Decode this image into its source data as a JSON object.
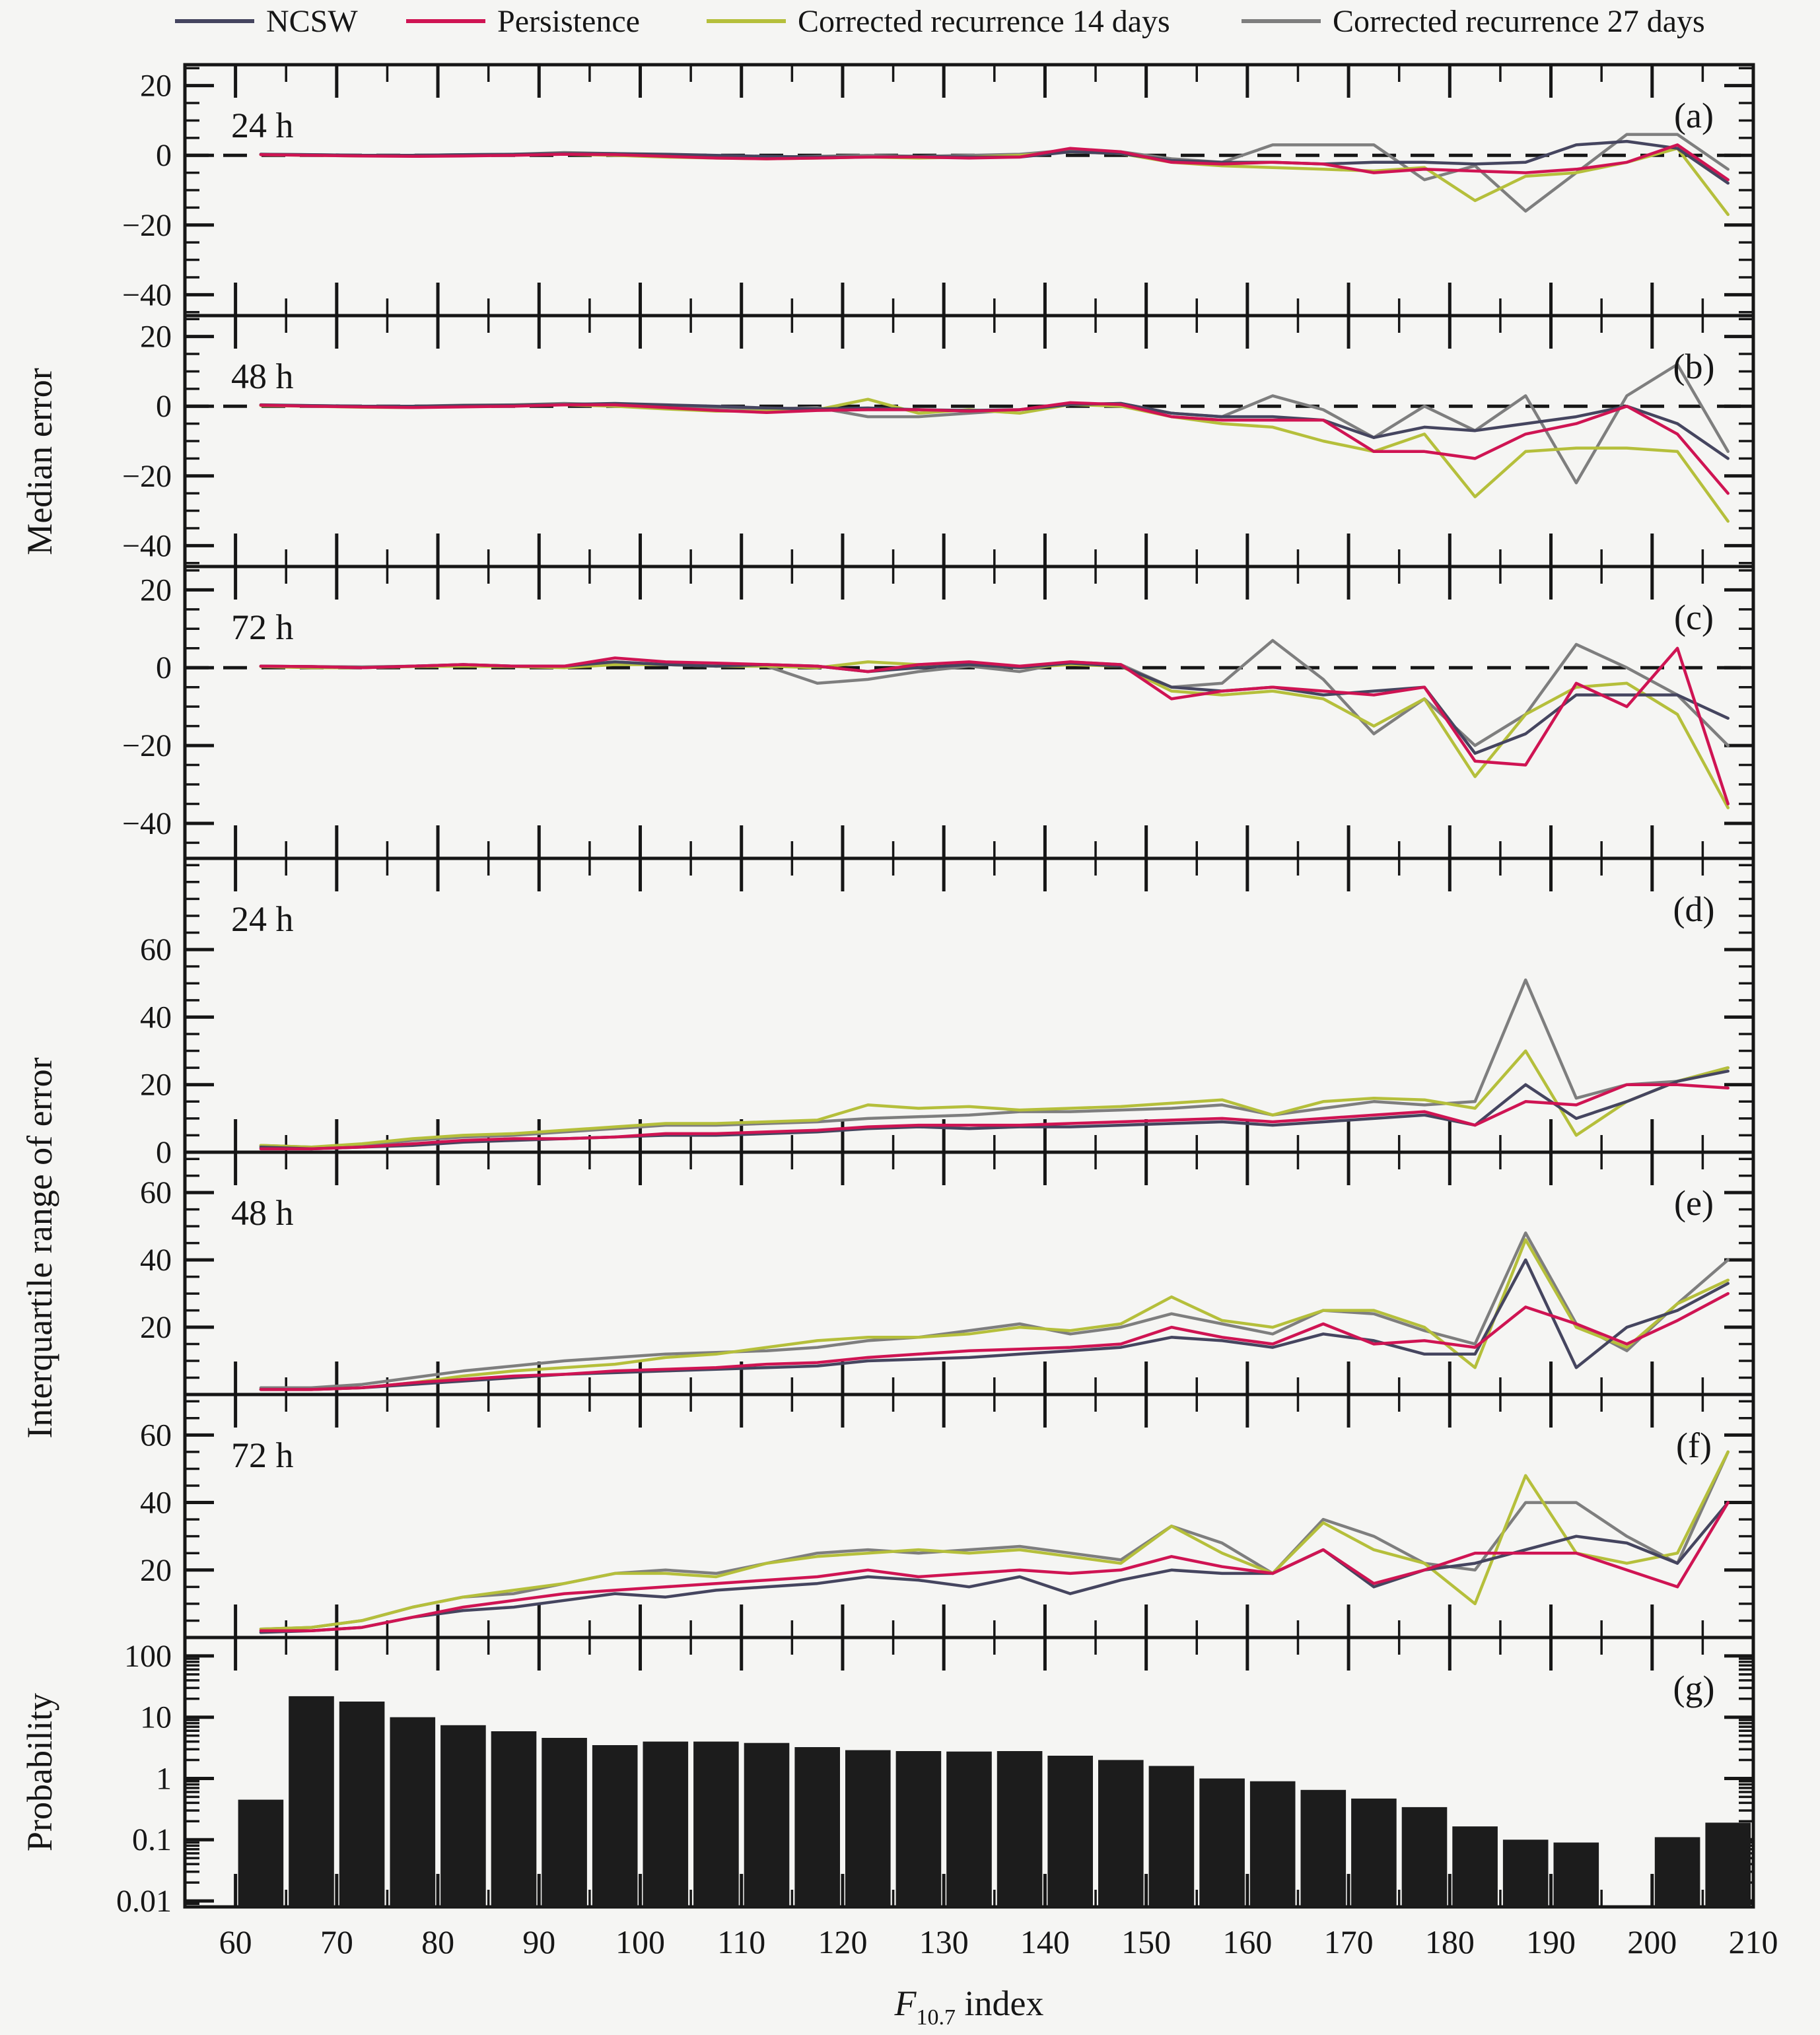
{
  "figure": {
    "y_axis_label_median": "Median error",
    "y_axis_label_iqr": "Interquartile range of error",
    "y_axis_label_prob": "Probability",
    "x_axis_label_main": "F",
    "x_axis_label_sub": "10.7",
    "x_axis_label_rest": " index",
    "background_color": "#f5f5f3",
    "axis_color": "#161616",
    "bar_color": "#1c1c1c"
  },
  "legend": {
    "items": [
      {
        "key": "ncsw",
        "label": "NCSW",
        "color": "#45455f"
      },
      {
        "key": "persistence",
        "label": "Persistence",
        "color": "#cf1453"
      },
      {
        "key": "corr14",
        "label": "Corrected recurrence 14 days",
        "color": "#b5bf3b"
      },
      {
        "key": "corr27",
        "label": "Corrected recurrence 27 days",
        "color": "#7e7e7e"
      }
    ]
  },
  "chart_data": {
    "type": "multi-panel",
    "x": {
      "label": "F10.7 index",
      "range": [
        55,
        210
      ],
      "major_ticks": [
        60,
        70,
        80,
        90,
        100,
        110,
        120,
        130,
        140,
        150,
        160,
        170,
        180,
        190,
        200,
        210
      ],
      "minor_step": 5,
      "bin_centers": [
        62.5,
        67.5,
        72.5,
        77.5,
        82.5,
        87.5,
        92.5,
        97.5,
        102.5,
        107.5,
        112.5,
        117.5,
        122.5,
        127.5,
        132.5,
        137.5,
        142.5,
        147.5,
        152.5,
        157.5,
        162.5,
        167.5,
        172.5,
        177.5,
        182.5,
        187.5,
        192.5,
        197.5,
        202.5,
        207.5
      ]
    },
    "panels": [
      {
        "id": "a",
        "letter": "(a)",
        "label": "24 h",
        "kind": "line",
        "group": "median-error",
        "ylim": [
          -46,
          26
        ],
        "yticks": [
          20,
          0,
          -20,
          -40
        ],
        "zero_dashed": true,
        "series": [
          {
            "key": "corr27",
            "values": [
              0.3,
              0.2,
              0,
              0,
              0.2,
              0.3,
              0.8,
              0.5,
              0,
              -0.3,
              -0.5,
              -0.3,
              0,
              -0.3,
              0,
              0.3,
              1.5,
              1,
              -1,
              -2,
              3,
              3,
              3,
              -7,
              -3,
              -16,
              -5,
              6,
              6,
              -4
            ]
          },
          {
            "key": "corr14",
            "values": [
              0.2,
              0,
              -0.2,
              -0.2,
              0,
              0.2,
              0.3,
              0,
              -0.5,
              -0.8,
              -1,
              -0.8,
              -0.5,
              -0.8,
              -0.5,
              0,
              1,
              0.5,
              -2,
              -3,
              -3.5,
              -4,
              -4.5,
              -3.5,
              -13,
              -6,
              -5,
              -2,
              2,
              -17
            ]
          },
          {
            "key": "ncsw",
            "values": [
              0.3,
              0.2,
              0,
              0,
              0.2,
              0.3,
              0.5,
              0.5,
              0.3,
              0,
              -0.3,
              -0.5,
              -0.5,
              -0.3,
              -0.5,
              -0.5,
              1,
              0.5,
              -1.5,
              -2,
              -2,
              -2.5,
              -2,
              -2,
              -2.5,
              -2,
              3,
              4,
              2,
              -8
            ]
          },
          {
            "key": "persistence",
            "values": [
              0.2,
              0,
              -0.2,
              -0.3,
              -0.2,
              0,
              0.3,
              0.2,
              -0.3,
              -0.8,
              -1,
              -0.8,
              -0.5,
              -0.5,
              -0.8,
              -0.5,
              2,
              1,
              -2,
              -2.5,
              -2,
              -2.5,
              -5,
              -4,
              -4.5,
              -5,
              -4,
              -2,
              3,
              -7
            ]
          }
        ]
      },
      {
        "id": "b",
        "letter": "(b)",
        "label": "48 h",
        "kind": "line",
        "group": "median-error",
        "ylim": [
          -46,
          26
        ],
        "yticks": [
          20,
          0,
          -20,
          -40
        ],
        "zero_dashed": true,
        "series": [
          {
            "key": "corr27",
            "values": [
              0.3,
              0.2,
              0,
              0,
              0.3,
              0.4,
              0.8,
              0.4,
              0,
              -0.4,
              -0.8,
              -0.4,
              -3,
              -3,
              -2,
              -1,
              0.5,
              0.8,
              -2,
              -3,
              3,
              -1,
              -9,
              0,
              -7,
              3,
              -22,
              3,
              12,
              -13
            ]
          },
          {
            "key": "corr14",
            "values": [
              0.2,
              0,
              -0.3,
              -0.4,
              0,
              0.3,
              0.4,
              0,
              -0.8,
              -1.4,
              -1.4,
              -1,
              2,
              -2,
              -1,
              -2,
              0.5,
              0,
              -3,
              -5,
              -6,
              -10,
              -13,
              -8,
              -26,
              -13,
              -12,
              -12,
              -13,
              -33
            ]
          },
          {
            "key": "ncsw",
            "values": [
              0.4,
              0.2,
              0,
              0,
              0.2,
              0.3,
              0.5,
              0.8,
              0.4,
              0,
              -0.5,
              -0.8,
              -0.5,
              -1,
              -1.2,
              -1,
              0.5,
              0.8,
              -2,
              -3,
              -3,
              -4,
              -9,
              -6,
              -7,
              -5,
              -3,
              0,
              -5,
              -15
            ]
          },
          {
            "key": "persistence",
            "values": [
              0.3,
              0,
              -0.2,
              -0.4,
              -0.2,
              0,
              0.4,
              0.4,
              -0.4,
              -1.2,
              -1.8,
              -1.2,
              -1,
              -1,
              -1.4,
              -1,
              1,
              0.5,
              -3,
              -4,
              -4,
              -4,
              -13,
              -13,
              -15,
              -8,
              -5,
              0,
              -8,
              -25
            ]
          }
        ]
      },
      {
        "id": "c",
        "letter": "(c)",
        "label": "72 h",
        "kind": "line",
        "group": "median-error",
        "ylim": [
          -49,
          26
        ],
        "yticks": [
          20,
          0,
          -20,
          -40
        ],
        "zero_dashed": true,
        "series": [
          {
            "key": "corr27",
            "values": [
              0.4,
              0.3,
              0.2,
              0.4,
              0.8,
              0.4,
              0.4,
              1.5,
              0.8,
              0.4,
              0.4,
              -4,
              -3,
              -1,
              0.4,
              -1,
              1.5,
              0.8,
              -5,
              -4,
              7,
              -3,
              -17,
              -8,
              -20,
              -12,
              6,
              0,
              -7,
              -20
            ]
          },
          {
            "key": "corr14",
            "values": [
              0.3,
              0,
              0,
              0.3,
              0.4,
              0.3,
              0,
              0.8,
              0.8,
              0.4,
              0.4,
              0,
              1.5,
              0.8,
              0.8,
              0,
              0.8,
              0.4,
              -6,
              -7,
              -6,
              -8,
              -15,
              -8,
              -28,
              -12,
              -5,
              -4,
              -12,
              -36
            ]
          },
          {
            "key": "ncsw",
            "values": [
              0.4,
              0.3,
              0,
              0.4,
              0.8,
              0.4,
              0.4,
              1.5,
              0.8,
              0.4,
              0.8,
              0.4,
              -1,
              0,
              0.8,
              0,
              1.2,
              0.4,
              -5,
              -6,
              -5,
              -7,
              -6,
              -5,
              -22,
              -17,
              -7,
              -7,
              -7,
              -13
            ]
          },
          {
            "key": "persistence",
            "values": [
              0.4,
              0.3,
              0,
              0.4,
              0.8,
              0.4,
              0.4,
              2.5,
              1.5,
              1.2,
              0.8,
              0.4,
              -1,
              0.8,
              1.5,
              0.4,
              1.5,
              0.8,
              -8,
              -6,
              -5,
              -6,
              -7,
              -5,
              -24,
              -25,
              -4,
              -10,
              5,
              -35
            ]
          }
        ]
      },
      {
        "id": "d",
        "letter": "(d)",
        "label": "24 h",
        "kind": "line",
        "group": "iqr-error",
        "ylim": [
          0,
          87
        ],
        "yticks": [
          60,
          40,
          20,
          0
        ],
        "zero_dashed": false,
        "series": [
          {
            "key": "corr27",
            "values": [
              2,
              1.5,
              2,
              3.5,
              4.5,
              5,
              6,
              7,
              8,
              8,
              8.5,
              9,
              10,
              10.5,
              11,
              12,
              12,
              12.5,
              13,
              14,
              11,
              13,
              15,
              14,
              15,
              51,
              16,
              20,
              21,
              25
            ]
          },
          {
            "key": "corr14",
            "values": [
              2,
              1.5,
              2.5,
              4,
              5,
              5.5,
              6.5,
              7.5,
              8.5,
              8.5,
              9,
              9.5,
              14,
              13,
              13.5,
              12.5,
              13,
              13.5,
              14.5,
              15.5,
              11,
              15,
              16,
              15.5,
              13,
              30,
              5,
              15,
              21,
              25
            ]
          },
          {
            "key": "ncsw",
            "values": [
              1.5,
              1,
              1.5,
              2,
              3,
              3.5,
              4,
              4.5,
              5,
              5,
              5.5,
              6,
              7,
              7.5,
              7,
              7.5,
              7.5,
              8,
              8.5,
              9,
              8,
              9,
              10,
              11,
              8,
              20,
              10,
              15,
              21,
              24
            ]
          },
          {
            "key": "persistence",
            "values": [
              1,
              1,
              1.5,
              2.5,
              3.5,
              4,
              4,
              4.5,
              5.5,
              5.5,
              6,
              6.5,
              7.5,
              8,
              8,
              8,
              8.5,
              9,
              9.5,
              10,
              9,
              10,
              11,
              12,
              8,
              15,
              14,
              20,
              20,
              19
            ]
          }
        ]
      },
      {
        "id": "e",
        "letter": "(e)",
        "label": "48 h",
        "kind": "line",
        "group": "iqr-error",
        "ylim": [
          0,
          72
        ],
        "yticks": [
          60,
          40,
          20
        ],
        "zero_dashed": false,
        "series": [
          {
            "key": "corr27",
            "values": [
              2,
              2,
              3,
              5,
              7,
              8.5,
              10,
              11,
              12,
              12.5,
              13,
              14,
              16,
              17,
              19,
              21,
              18,
              20,
              24,
              21,
              18,
              25,
              24,
              19,
              15,
              48,
              21,
              13,
              27,
              40
            ]
          },
          {
            "key": "corr14",
            "values": [
              1.5,
              1.5,
              2,
              3.5,
              5.5,
              7,
              8,
              9,
              11,
              12,
              14,
              16,
              17,
              17,
              18,
              20,
              19,
              21,
              29,
              22,
              20,
              25,
              25,
              20,
              8,
              46,
              20,
              14,
              27,
              34
            ]
          },
          {
            "key": "ncsw",
            "values": [
              1.5,
              1.5,
              2,
              3,
              4,
              5,
              6,
              6.5,
              7,
              7.5,
              8,
              8.5,
              10,
              10.5,
              11,
              12,
              13,
              14,
              17,
              16,
              14,
              18,
              16,
              12,
              12,
              40,
              8,
              20,
              25,
              33
            ]
          },
          {
            "key": "persistence",
            "values": [
              1.5,
              1.5,
              2,
              3.5,
              4.5,
              5.5,
              6,
              7,
              7.5,
              8,
              9,
              9.5,
              11,
              12,
              13,
              13.5,
              14,
              15,
              20,
              17,
              15,
              21,
              15,
              16,
              14,
              26,
              21,
              15,
              22,
              30
            ]
          }
        ]
      },
      {
        "id": "f",
        "letter": "(f)",
        "label": "72 h",
        "kind": "line",
        "group": "iqr-error",
        "ylim": [
          0,
          72
        ],
        "yticks": [
          60,
          40,
          20
        ],
        "zero_dashed": false,
        "series": [
          {
            "key": "corr27",
            "values": [
              2.5,
              3,
              5,
              9,
              12,
              13,
              16,
              19,
              20,
              19,
              22,
              25,
              26,
              25,
              26,
              27,
              25,
              23,
              33,
              28,
              19,
              35,
              30,
              22,
              20,
              40,
              40,
              30,
              22,
              55
            ]
          },
          {
            "key": "corr14",
            "values": [
              2.5,
              3,
              5,
              9,
              12,
              14,
              16,
              19,
              19,
              18,
              22,
              24,
              25,
              26,
              25,
              26,
              24,
              22,
              33,
              25,
              19,
              34,
              26,
              22,
              10,
              48,
              25,
              22,
              25,
              55
            ]
          },
          {
            "key": "ncsw",
            "values": [
              1.5,
              2,
              3,
              6,
              8,
              9,
              11,
              13,
              12,
              14,
              15,
              16,
              18,
              17,
              15,
              18,
              13,
              17,
              20,
              19,
              19,
              26,
              15,
              20,
              22,
              26,
              30,
              28,
              22,
              40
            ]
          },
          {
            "key": "persistence",
            "values": [
              2,
              2,
              3,
              6,
              9,
              11,
              13,
              14,
              15,
              16,
              17,
              18,
              20,
              18,
              19,
              20,
              19,
              20,
              24,
              21,
              19,
              26,
              16,
              20,
              25,
              25,
              25,
              20,
              15,
              40
            ]
          }
        ]
      },
      {
        "id": "g",
        "letter": "(g)",
        "label": "",
        "kind": "bar",
        "group": "probability",
        "yscale": "log",
        "ylim": [
          0.008,
          200
        ],
        "ytick_labels": [
          "100",
          "10",
          "1",
          "0.1",
          "0.01"
        ],
        "bin_start": 60,
        "bin_width": 5,
        "values": [
          0.45,
          22,
          18,
          10,
          7.4,
          5.9,
          4.6,
          3.5,
          4.0,
          4.0,
          3.8,
          3.25,
          2.9,
          2.8,
          2.75,
          2.8,
          2.35,
          2.0,
          1.6,
          1.0,
          0.9,
          0.65,
          0.47,
          0.34,
          0.165,
          0.1,
          0.09,
          0,
          0.11,
          0.19
        ]
      }
    ]
  }
}
